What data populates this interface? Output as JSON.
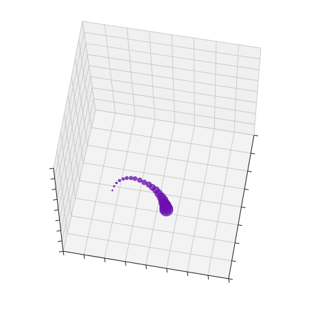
{
  "chart_data": {
    "type": "scatter",
    "projection": "3d",
    "title": "",
    "xlabel": "",
    "ylabel": "",
    "zlabel": "",
    "grid": true,
    "tick_labels_visible": false,
    "pane_color": "#f2f2f2",
    "grid_color": "#c8c8c8",
    "axis_color": "#222222",
    "marker_color": "#6a0dad",
    "series": [
      {
        "x": [
          -0.58,
          -0.57,
          -0.55,
          -0.52,
          -0.48,
          -0.44,
          -0.39,
          -0.34,
          -0.28,
          -0.22,
          -0.16,
          -0.11,
          -0.06,
          -0.02,
          0.02,
          0.05,
          0.07,
          0.09,
          0.1,
          0.11
        ],
        "y": [
          -0.06,
          0.0,
          0.05,
          0.09,
          0.12,
          0.14,
          0.15,
          0.15,
          0.14,
          0.12,
          0.1,
          0.07,
          0.04,
          0.0,
          -0.04,
          -0.08,
          -0.12,
          -0.15,
          -0.18,
          -0.2
        ],
        "z": [
          0.0,
          0.0,
          0.0,
          0.0,
          0.0,
          0.0,
          0.0,
          0.0,
          0.0,
          0.0,
          0.0,
          0.0,
          0.0,
          0.0,
          0.0,
          0.0,
          0.0,
          0.0,
          0.0,
          0.0
        ],
        "size": [
          1.0,
          1.2,
          1.5,
          1.8,
          2.1,
          2.4,
          2.7,
          3.0,
          3.3,
          3.6,
          4.0,
          4.5,
          5.0,
          5.6,
          6.2,
          6.9,
          7.6,
          8.3,
          9.0,
          9.7
        ]
      }
    ]
  }
}
